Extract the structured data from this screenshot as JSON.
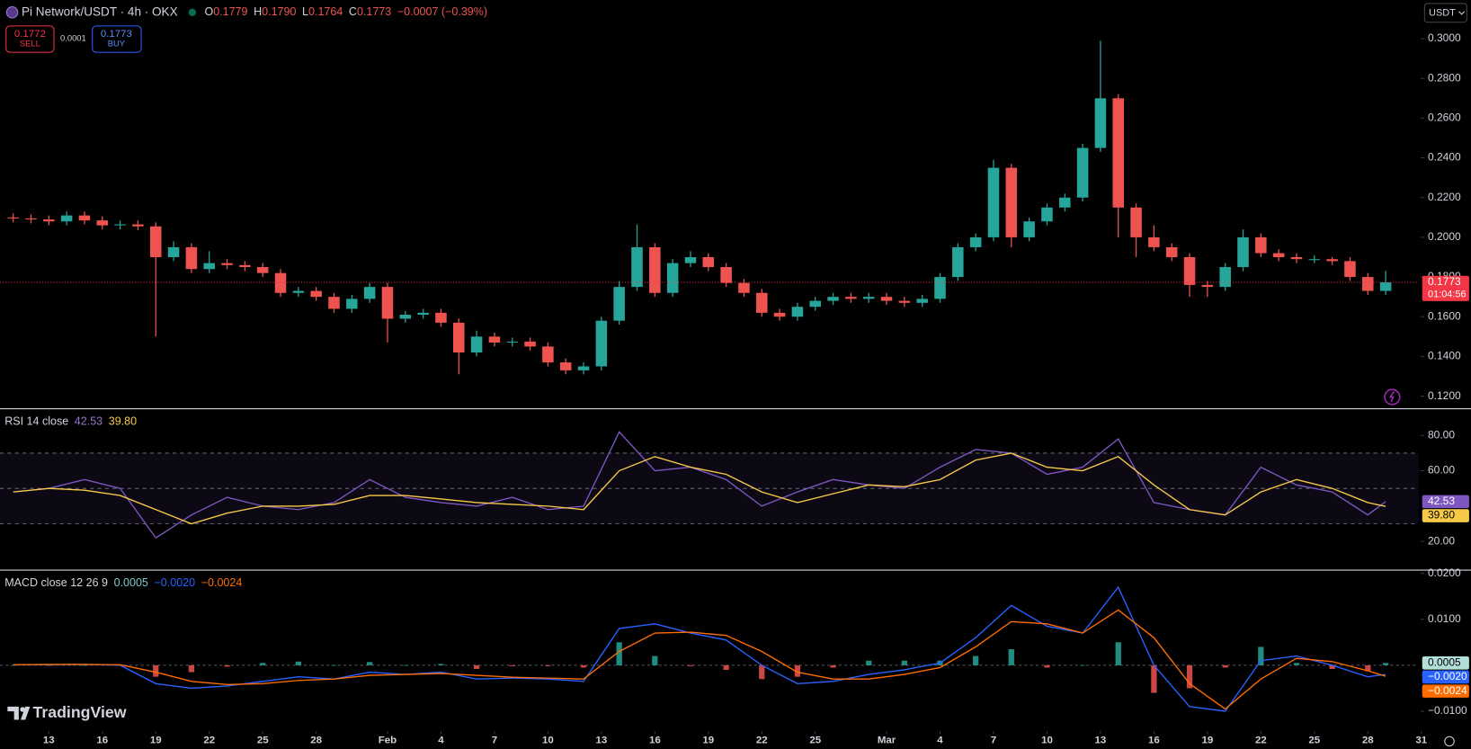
{
  "header": {
    "symbol": "Pi Network/USDT · 4h · OKX",
    "ohlc": [
      {
        "key": "O",
        "value": "0.1779"
      },
      {
        "key": "H",
        "value": "0.1790"
      },
      {
        "key": "L",
        "value": "0.1764"
      },
      {
        "key": "C",
        "value": "0.1773"
      }
    ],
    "change": "−0.0007 (−0.39%)",
    "sell_price": "0.1772",
    "sell_label": "SELL",
    "spread": "0.0001",
    "buy_price": "0.1773",
    "buy_label": "BUY",
    "currency": "USDT",
    "countdown": "01:04:56",
    "brand": "TradingView"
  },
  "chart_data": [
    {
      "type": "candlestick",
      "up_color": "#26a69a",
      "down_color": "#ef5350",
      "x": [
        11,
        12,
        13,
        14,
        15,
        16,
        17,
        18,
        19,
        20,
        21,
        22,
        23,
        24,
        25,
        26,
        27,
        28,
        29,
        30,
        31,
        32,
        33,
        34,
        35,
        36,
        37,
        38,
        39,
        40,
        41,
        42,
        43,
        44,
        45,
        46,
        47,
        48,
        49,
        50,
        51,
        52,
        53,
        54,
        55,
        56,
        57,
        58,
        59,
        60,
        61,
        62,
        63,
        64,
        65,
        66,
        67,
        68,
        69,
        70,
        71,
        72,
        73,
        74,
        75,
        76,
        77,
        78,
        79,
        80,
        81,
        82,
        83,
        84,
        85,
        86,
        87,
        88
      ],
      "open": [
        0.21,
        0.2095,
        0.209,
        0.208,
        0.211,
        0.2085,
        0.206,
        0.2065,
        0.2055,
        0.19,
        0.195,
        0.184,
        0.187,
        0.186,
        0.185,
        0.182,
        0.172,
        0.173,
        0.17,
        0.164,
        0.169,
        0.175,
        0.159,
        0.161,
        0.162,
        0.157,
        0.142,
        0.15,
        0.147,
        0.1475,
        0.145,
        0.137,
        0.133,
        0.135,
        0.158,
        0.175,
        0.195,
        0.172,
        0.187,
        0.19,
        0.185,
        0.177,
        0.172,
        0.162,
        0.16,
        0.165,
        0.168,
        0.17,
        0.169,
        0.17,
        0.168,
        0.167,
        0.169,
        0.18,
        0.195,
        0.2,
        0.235,
        0.2,
        0.208,
        0.215,
        0.22,
        0.245,
        0.27,
        0.215,
        0.2,
        0.195,
        0.19,
        0.176,
        0.175,
        0.185,
        0.2,
        0.192,
        0.19,
        0.189,
        0.189,
        0.188,
        0.18,
        0.173
      ],
      "high": [
        0.212,
        0.2115,
        0.211,
        0.213,
        0.213,
        0.2105,
        0.2085,
        0.2085,
        0.2075,
        0.198,
        0.197,
        0.193,
        0.189,
        0.188,
        0.187,
        0.184,
        0.175,
        0.175,
        0.172,
        0.171,
        0.177,
        0.177,
        0.163,
        0.164,
        0.164,
        0.159,
        0.153,
        0.152,
        0.1495,
        0.1495,
        0.147,
        0.139,
        0.137,
        0.16,
        0.178,
        0.2065,
        0.197,
        0.189,
        0.193,
        0.192,
        0.187,
        0.179,
        0.174,
        0.164,
        0.167,
        0.17,
        0.172,
        0.172,
        0.172,
        0.172,
        0.17,
        0.171,
        0.182,
        0.197,
        0.202,
        0.239,
        0.237,
        0.21,
        0.217,
        0.222,
        0.247,
        0.299,
        0.272,
        0.217,
        0.206,
        0.197,
        0.192,
        0.178,
        0.187,
        0.204,
        0.202,
        0.194,
        0.192,
        0.191,
        0.19,
        0.19,
        0.182,
        0.183
      ],
      "low": [
        0.2075,
        0.207,
        0.206,
        0.206,
        0.2065,
        0.204,
        0.204,
        0.2035,
        0.15,
        0.188,
        0.182,
        0.182,
        0.184,
        0.183,
        0.18,
        0.17,
        0.17,
        0.168,
        0.162,
        0.162,
        0.167,
        0.147,
        0.157,
        0.159,
        0.155,
        0.131,
        0.14,
        0.145,
        0.145,
        0.143,
        0.135,
        0.131,
        0.131,
        0.133,
        0.156,
        0.173,
        0.17,
        0.17,
        0.185,
        0.183,
        0.175,
        0.17,
        0.16,
        0.158,
        0.158,
        0.163,
        0.166,
        0.167,
        0.167,
        0.166,
        0.165,
        0.165,
        0.167,
        0.178,
        0.193,
        0.198,
        0.195,
        0.198,
        0.206,
        0.213,
        0.218,
        0.243,
        0.2,
        0.19,
        0.193,
        0.188,
        0.17,
        0.17,
        0.173,
        0.183,
        0.19,
        0.188,
        0.187,
        0.187,
        0.186,
        0.178,
        0.171,
        0.171
      ],
      "close": [
        0.2095,
        0.209,
        0.208,
        0.211,
        0.2085,
        0.206,
        0.2065,
        0.2055,
        0.19,
        0.195,
        0.184,
        0.187,
        0.186,
        0.185,
        0.182,
        0.172,
        0.173,
        0.17,
        0.164,
        0.169,
        0.175,
        0.159,
        0.161,
        0.162,
        0.157,
        0.142,
        0.15,
        0.147,
        0.1475,
        0.145,
        0.137,
        0.133,
        0.135,
        0.158,
        0.175,
        0.195,
        0.172,
        0.187,
        0.19,
        0.185,
        0.177,
        0.172,
        0.162,
        0.16,
        0.165,
        0.168,
        0.17,
        0.169,
        0.17,
        0.168,
        0.167,
        0.169,
        0.18,
        0.195,
        0.2,
        0.235,
        0.2,
        0.208,
        0.215,
        0.22,
        0.245,
        0.27,
        0.215,
        0.2,
        0.195,
        0.19,
        0.176,
        0.175,
        0.185,
        0.2,
        0.192,
        0.19,
        0.189,
        0.189,
        0.188,
        0.18,
        0.173,
        0.1773
      ],
      "last_price": 0.1773,
      "last_price_color": "#f23645",
      "xlim": [
        10.26,
        89.84
      ],
      "ylim": [
        0.1139,
        0.3194
      ],
      "yticks": [
        {
          "value": 0.3,
          "label": "0.3000"
        },
        {
          "value": 0.28,
          "label": "0.2800"
        },
        {
          "value": 0.26,
          "label": "0.2600"
        },
        {
          "value": 0.24,
          "label": "0.2400"
        },
        {
          "value": 0.22,
          "label": "0.2200"
        },
        {
          "value": 0.2,
          "label": "0.2000"
        },
        {
          "value": 0.18,
          "label": "0.1800"
        },
        {
          "value": 0.16,
          "label": "0.1600"
        },
        {
          "value": 0.14,
          "label": "0.1400"
        },
        {
          "value": 0.12,
          "label": "0.1200"
        }
      ]
    },
    {
      "type": "line",
      "title": "RSI 14 close",
      "legend_values": [
        "42.53",
        "39.80"
      ],
      "x": [
        11,
        13,
        15,
        17,
        19,
        21,
        23,
        25,
        27,
        29,
        31,
        33,
        35,
        37,
        39,
        41,
        43,
        45,
        47,
        49,
        51,
        53,
        55,
        57,
        59,
        61,
        63,
        65,
        67,
        69,
        71,
        73,
        75,
        77,
        79,
        81,
        83,
        85,
        87,
        88
      ],
      "series": [
        {
          "color": "#7e57c2",
          "values": [
            48,
            50,
            55,
            50,
            22,
            35,
            45,
            40,
            38,
            42,
            55,
            45,
            42,
            40,
            45,
            38,
            40,
            82,
            60,
            62,
            55,
            40,
            48,
            55,
            52,
            50,
            62,
            72,
            70,
            58,
            62,
            78,
            42,
            38,
            35,
            62,
            52,
            48,
            35,
            42.53
          ]
        },
        {
          "color": "#f7c948",
          "values": [
            48,
            50,
            49,
            46,
            38,
            30,
            36,
            40,
            40,
            41,
            46,
            46,
            44,
            42,
            41,
            40,
            38,
            60,
            68,
            62,
            58,
            48,
            42,
            47,
            52,
            51,
            55,
            66,
            70,
            62,
            60,
            68,
            52,
            38,
            35,
            48,
            55,
            50,
            42,
            39.8
          ]
        }
      ],
      "bands": [
        30,
        50,
        70
      ],
      "band_color": "#7e57c2",
      "xlim": [
        10.26,
        89.84
      ],
      "ylim": [
        5.1,
        94.3
      ],
      "yticks": [
        {
          "value": 80,
          "label": "80.00"
        },
        {
          "value": 60,
          "label": "60.00"
        },
        {
          "value": 20,
          "label": "20.00"
        }
      ]
    },
    {
      "type": "line",
      "title": "MACD close 12 26 9",
      "legend_values": [
        "0.0005",
        "−0.0020",
        "−0.0024"
      ],
      "x": [
        11,
        13,
        15,
        17,
        19,
        21,
        23,
        25,
        27,
        29,
        31,
        33,
        35,
        37,
        39,
        41,
        43,
        45,
        47,
        49,
        51,
        53,
        55,
        57,
        59,
        61,
        63,
        65,
        67,
        69,
        71,
        73,
        75,
        77,
        79,
        81,
        83,
        85,
        87,
        88
      ],
      "series": [
        {
          "type": "bar",
          "color": "#26a69a",
          "negative_color": "#ef5350",
          "values": [
            0,
            -0.0001,
            0,
            -0.0001,
            -0.0025,
            -0.0015,
            -0.0003,
            0.0005,
            0.0008,
            0,
            0.0007,
            0,
            0.0003,
            -0.0008,
            -0.0002,
            -0.0002,
            -0.0005,
            0.005,
            0.002,
            -0.0002,
            -0.001,
            -0.003,
            -0.0025,
            -0.0005,
            0.001,
            0.001,
            0.001,
            0.002,
            0.0035,
            -0.0005,
            0,
            0.005,
            -0.006,
            -0.005,
            -0.0005,
            0.004,
            0.0005,
            -0.0008,
            -0.0013,
            0.0005
          ]
        },
        {
          "color": "#2962ff",
          "values": [
            0.0001,
            0.0001,
            0.0002,
            0,
            -0.004,
            -0.005,
            -0.0045,
            -0.0035,
            -0.0025,
            -0.003,
            -0.0015,
            -0.002,
            -0.0015,
            -0.003,
            -0.0028,
            -0.003,
            -0.0035,
            0.008,
            0.009,
            0.007,
            0.0055,
            0,
            -0.004,
            -0.0035,
            -0.002,
            -0.001,
            0.0005,
            0.006,
            0.013,
            0.0085,
            0.007,
            0.017,
            0,
            -0.009,
            -0.01,
            0.001,
            0.002,
            0,
            -0.0025,
            -0.002
          ]
        },
        {
          "color": "#ff6d00",
          "values": [
            0.0001,
            0.0002,
            0.0002,
            0.0001,
            -0.0015,
            -0.0035,
            -0.0042,
            -0.004,
            -0.0033,
            -0.003,
            -0.0022,
            -0.002,
            -0.0018,
            -0.0022,
            -0.0026,
            -0.0028,
            -0.003,
            0.003,
            0.007,
            0.0072,
            0.0065,
            0.003,
            -0.0015,
            -0.003,
            -0.003,
            -0.002,
            -0.0005,
            0.004,
            0.0095,
            0.009,
            0.007,
            0.012,
            0.006,
            -0.004,
            -0.0095,
            -0.003,
            0.0015,
            0.0008,
            -0.0012,
            -0.0024
          ]
        }
      ],
      "xlim": [
        10.26,
        89.84
      ],
      "ylim": [
        -0.0141,
        0.0204
      ],
      "yticks": [
        {
          "value": 0.02,
          "label": "0.0200"
        },
        {
          "value": 0.01,
          "label": "0.0100"
        },
        {
          "value": -0.01,
          "label": "−0.0100"
        }
      ],
      "xticks": [
        {
          "value": 13,
          "label": "13"
        },
        {
          "value": 16,
          "label": "16"
        },
        {
          "value": 19,
          "label": "19"
        },
        {
          "value": 22,
          "label": "22"
        },
        {
          "value": 25,
          "label": "25"
        },
        {
          "value": 28,
          "label": "28"
        },
        {
          "value": 32,
          "label": "Feb"
        },
        {
          "value": 35,
          "label": "4"
        },
        {
          "value": 38,
          "label": "7"
        },
        {
          "value": 41,
          "label": "10"
        },
        {
          "value": 44,
          "label": "13"
        },
        {
          "value": 47,
          "label": "16"
        },
        {
          "value": 50,
          "label": "19"
        },
        {
          "value": 53,
          "label": "22"
        },
        {
          "value": 56,
          "label": "25"
        },
        {
          "value": 60,
          "label": "Mar"
        },
        {
          "value": 63,
          "label": "4"
        },
        {
          "value": 66,
          "label": "7"
        },
        {
          "value": 69,
          "label": "10"
        },
        {
          "value": 72,
          "label": "13"
        },
        {
          "value": 75,
          "label": "16"
        },
        {
          "value": 78,
          "label": "19"
        },
        {
          "value": 81,
          "label": "22"
        },
        {
          "value": 84,
          "label": "25"
        },
        {
          "value": 87,
          "label": "28"
        },
        {
          "value": 90,
          "label": "31"
        }
      ]
    }
  ]
}
